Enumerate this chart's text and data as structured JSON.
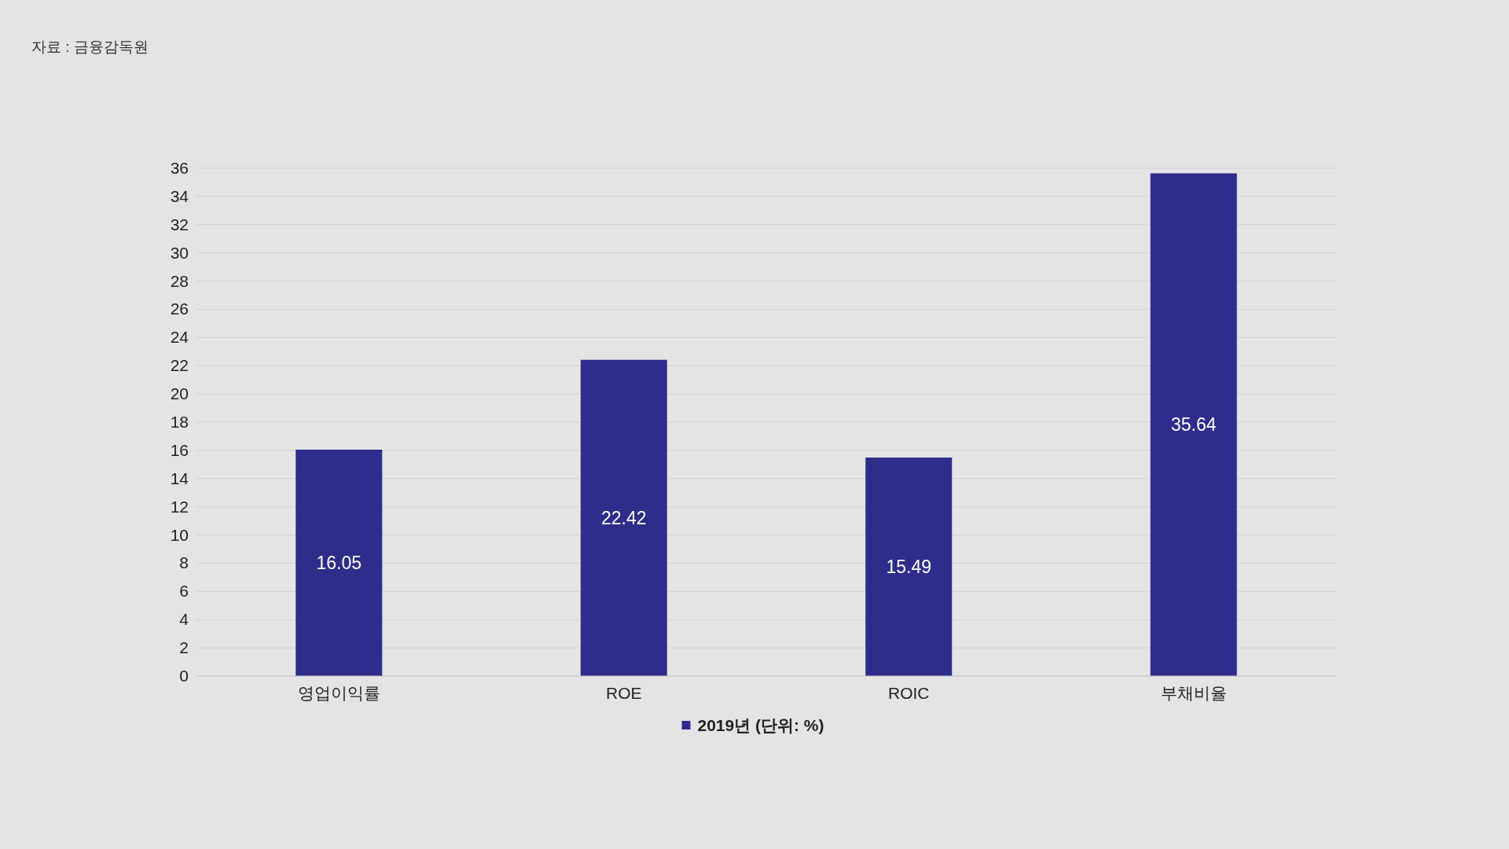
{
  "chart_data": {
    "type": "bar",
    "categories": [
      "영업이익률",
      "ROE",
      "ROIC",
      "부채비율"
    ],
    "series": [
      {
        "name": "2019년 (단위: %)",
        "color": "#2e2d8c",
        "values": [
          16.05,
          22.42,
          15.49,
          35.64
        ]
      }
    ],
    "ylim": [
      0,
      36
    ],
    "yticks": [
      0,
      2,
      4,
      6,
      8,
      10,
      12,
      14,
      16,
      18,
      20,
      22,
      24,
      26,
      28,
      30,
      32,
      34,
      36
    ],
    "grid": "y",
    "legend": "bottom",
    "data_labels": true,
    "annotations": [
      "자료 : 금융감독원"
    ]
  }
}
